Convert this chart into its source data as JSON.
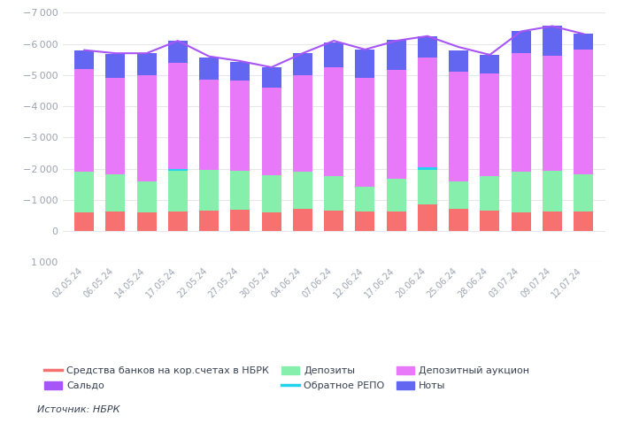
{
  "dates": [
    "02.05.24",
    "06.05.24",
    "14.05.24",
    "17.05.24",
    "22.05.24",
    "27.05.24",
    "30.05.24",
    "04.06.24",
    "07.06.24",
    "12.06.24",
    "17.06.24",
    "20.06.24",
    "25.06.24",
    "28.06.24",
    "03.07.24",
    "09.07.24",
    "12.07.24"
  ],
  "korschet": [
    -600,
    -620,
    -600,
    -620,
    -650,
    -680,
    -600,
    -700,
    -650,
    -620,
    -620,
    -850,
    -700,
    -650,
    -600,
    -620,
    -620
  ],
  "depozity": [
    -1300,
    -1200,
    -1000,
    -1300,
    -1300,
    -1250,
    -1200,
    -1200,
    -1100,
    -800,
    -1050,
    -1100,
    -900,
    -1100,
    -1300,
    -1300,
    -1200
  ],
  "obratnoe_repo": [
    0,
    0,
    0,
    -80,
    0,
    0,
    0,
    0,
    0,
    0,
    0,
    -100,
    0,
    0,
    0,
    0,
    0
  ],
  "depozitny_auction": [
    -3300,
    -3100,
    -3400,
    -3400,
    -2900,
    -2900,
    -2800,
    -3100,
    -3500,
    -3500,
    -3500,
    -3500,
    -3500,
    -3300,
    -3800,
    -3700,
    -4000
  ],
  "noty": [
    -600,
    -750,
    -700,
    -700,
    -700,
    -600,
    -650,
    -700,
    -800,
    -900,
    -950,
    -700,
    -700,
    -600,
    -700,
    -950,
    -500
  ],
  "saldo": [
    -5800,
    -5700,
    -5700,
    -6100,
    -5600,
    -5450,
    -5250,
    -5700,
    -6100,
    -5820,
    -6100,
    -6250,
    -5900,
    -5650,
    -6400,
    -6570,
    -6320
  ],
  "colors": {
    "korschet": "#f87171",
    "depozity": "#86efac",
    "obratnoe_repo": "#22d3ee",
    "depozitny_auction": "#e879f9",
    "noty": "#6366f1",
    "saldo": "#a855f7"
  },
  "legend_labels": {
    "korschet": "Средства банков на кор.счетах в НБРК",
    "saldo": "Сальдо",
    "depozity": "Депозиты",
    "obratnoe_repo": "Обратное РЕПО",
    "depozitny_auction": "Депозитный аукцион",
    "noty": "Ноты"
  },
  "source_text": "Источник: НБРК",
  "yticks": [
    -7000,
    -6000,
    -5000,
    -4000,
    -3000,
    -2000,
    -1000,
    0,
    1000
  ],
  "background_color": "#ffffff",
  "grid_color": "#e5e7eb",
  "text_color": "#9ca3af"
}
